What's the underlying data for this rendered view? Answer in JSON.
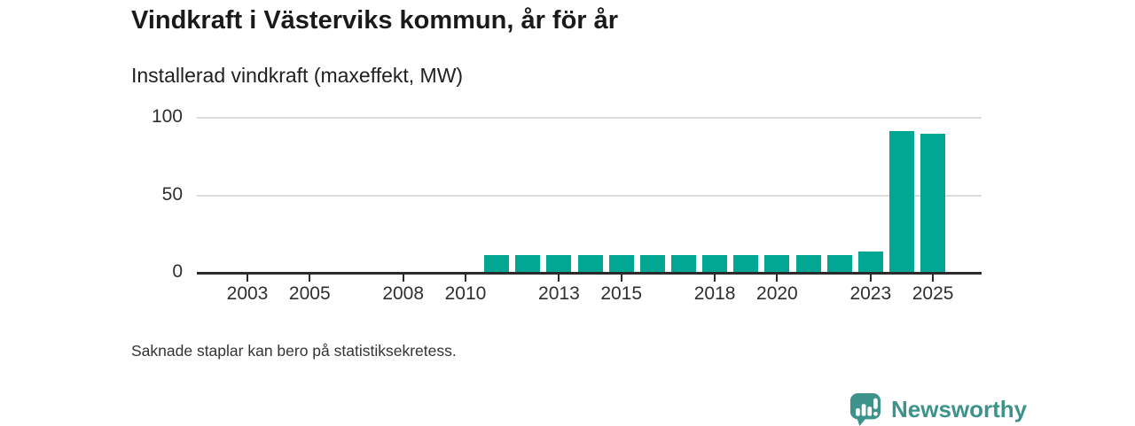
{
  "chart_data": {
    "type": "bar",
    "title": "Vindkraft i Västerviks kommun, år för år",
    "subtitle": "Installerad vindkraft (maxeffekt, MW)",
    "xlabel": "",
    "ylabel": "Installerad vindkraft (maxeffekt, MW)",
    "unit": "MW",
    "categories": [
      2002,
      2003,
      2004,
      2005,
      2006,
      2007,
      2008,
      2009,
      2010,
      2011,
      2012,
      2013,
      2014,
      2015,
      2016,
      2017,
      2018,
      2019,
      2020,
      2021,
      2022,
      2023,
      2024,
      2025
    ],
    "values": [
      null,
      null,
      null,
      null,
      null,
      null,
      null,
      null,
      null,
      11,
      11,
      11,
      11,
      11,
      11,
      11,
      11,
      11,
      11,
      11,
      11,
      13,
      91,
      89
    ],
    "ylim": [
      0,
      100
    ],
    "y_ticks": [
      0,
      50,
      100
    ],
    "x_tick_labels": [
      2003,
      2005,
      2008,
      2010,
      2013,
      2015,
      2018,
      2020,
      2023,
      2025
    ],
    "grid": "horizontal",
    "legend": "none",
    "bar_color": "#02a794",
    "footnote": "Saknade staplar kan bero på statistiksekretess.",
    "attribution": "Newsworthy"
  },
  "colors": {
    "bar": "#02a794",
    "brand": "#3d938c",
    "axis": "#2b2b2b",
    "grid": "#dddddd",
    "title_text": "#1a1a1a"
  },
  "icons": {
    "brand_icon": "newsworthy-speech-bubble-bar-chart-icon"
  }
}
